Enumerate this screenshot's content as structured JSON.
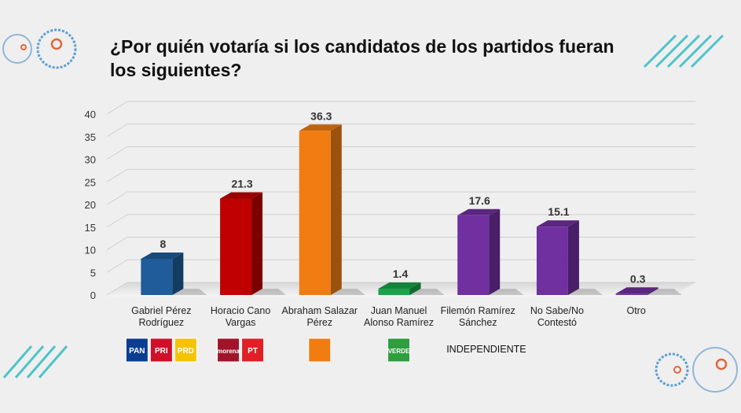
{
  "chart_data": {
    "type": "bar3d",
    "title": "¿Por quién votaría si los candidatos de los partidos fueran los siguientes?",
    "categories": [
      "Gabriel Pérez Rodríguez",
      "Horacio Cano Vargas",
      "Abraham Salazar Pérez",
      "Juan Manuel Alonso Ramírez",
      "Filemón Ramírez Sánchez",
      "No Sabe/No Contestó",
      "Otro"
    ],
    "values": [
      8,
      21.3,
      36.3,
      1.4,
      17.6,
      15.1,
      0.3
    ],
    "colors": [
      "#1f5c99",
      "#c00000",
      "#f07c12",
      "#1aa34a",
      "#7030a0",
      "#7030a0",
      "#7030a0"
    ],
    "ylim": [
      0,
      40
    ],
    "yticks": [
      0,
      5,
      10,
      15,
      20,
      25,
      30,
      35,
      40
    ],
    "grid": true,
    "parties": [
      [
        {
          "text": "PAN",
          "color": "#0b3d91"
        },
        {
          "text": "PRI",
          "color": "#d0102a"
        },
        {
          "text": "PRD",
          "color": "#f5c400"
        }
      ],
      [
        {
          "text": "morena",
          "color": "#a0142a"
        },
        {
          "text": "PT",
          "color": "#e01f26"
        }
      ],
      [
        {
          "color": "#f07c12"
        }
      ],
      [
        {
          "text": "VERDE",
          "color": "#2e9e3e"
        }
      ],
      [
        {
          "text": "INDEPENDIENTE"
        }
      ],
      null,
      null
    ]
  }
}
